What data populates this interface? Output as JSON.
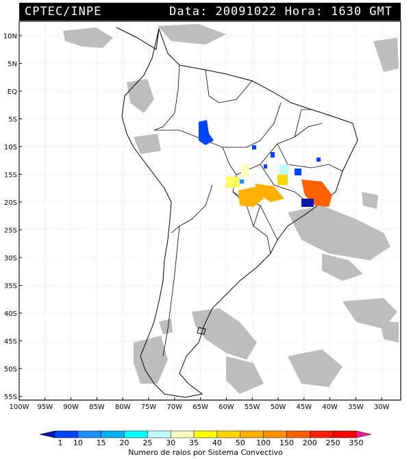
{
  "header": {
    "source": "CPTEC/INPE",
    "date_label": "Data:",
    "date_value": "20091022",
    "hour_label": "Hora:",
    "hour_value": "1630 GMT"
  },
  "map": {
    "lat_labels": [
      "10N",
      "5N",
      "EQ",
      "5S",
      "10S",
      "15S",
      "20S",
      "25S",
      "30S",
      "35S",
      "40S",
      "45S",
      "50S",
      "55S"
    ],
    "lon_labels": [
      "100W",
      "95W",
      "90W",
      "85W",
      "80W",
      "75W",
      "70W",
      "65W",
      "60W",
      "55W",
      "50W",
      "45W",
      "40W",
      "35W",
      "30W"
    ]
  },
  "legend": {
    "title": "Numero de raios por Sistema Convectivo",
    "values": [
      "1",
      "10",
      "15",
      "20",
      "25",
      "30",
      "35",
      "40",
      "50",
      "100",
      "150",
      "200",
      "250",
      "350"
    ],
    "colors": [
      "#0a1aa8",
      "#0044ff",
      "#1e90ff",
      "#00b0f0",
      "#00ffff",
      "#c0ffff",
      "#ffffc0",
      "#ffff00",
      "#ffd700",
      "#ffb000",
      "#ff9000",
      "#ff6000",
      "#ff2000",
      "#ff0000",
      "#ff1493"
    ]
  },
  "colors": {
    "cloud": "#bdbdbd",
    "frame": "#000000",
    "grid": "#b0b0b0"
  }
}
